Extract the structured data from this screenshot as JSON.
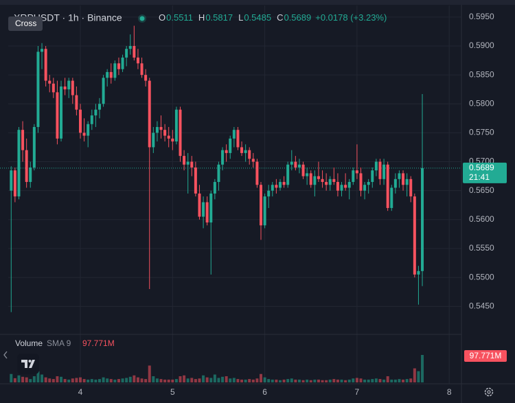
{
  "chart_data": {
    "type": "candlestick",
    "title": "XRPUSDT · 1h · Binance",
    "tooltip": "Cross",
    "ohlc_legend": [
      {
        "key": "O",
        "value": "0.5511"
      },
      {
        "key": "H",
        "value": "0.5817"
      },
      {
        "key": "L",
        "value": "0.5485"
      },
      {
        "key": "C",
        "value": "0.5689"
      }
    ],
    "change": "+0.0178 (+3.23%)",
    "up_color": "#22ab94",
    "down_color": "#f7525f",
    "grid": true,
    "xlim": [
      3.1288,
      8.1325
    ],
    "xticks": [
      4,
      5,
      6,
      7,
      8
    ],
    "ylim": [
      0.5404,
      0.597
    ],
    "yticks": [
      {
        "value": 0.545,
        "label": "0.5450"
      },
      {
        "value": 0.55,
        "label": "0.5500"
      },
      {
        "value": 0.555,
        "label": "0.5550"
      },
      {
        "value": 0.56,
        "label": "0.5600"
      },
      {
        "value": 0.565,
        "label": "0.5650"
      },
      {
        "value": 0.57,
        "label": "0.5700"
      },
      {
        "value": 0.575,
        "label": "0.5750"
      },
      {
        "value": 0.58,
        "label": "0.5800"
      },
      {
        "value": 0.585,
        "label": "0.5850"
      },
      {
        "value": 0.59,
        "label": "0.5900"
      },
      {
        "value": 0.595,
        "label": "0.5950"
      }
    ],
    "current_price": {
      "value": 0.5689,
      "countdown": "21:41"
    },
    "x": [
      3.25,
      3.2917,
      3.3333,
      3.375,
      3.4167,
      3.4583,
      3.5,
      3.5417,
      3.5833,
      3.625,
      3.6667,
      3.7083,
      3.75,
      3.7917,
      3.8333,
      3.875,
      3.9167,
      3.9583,
      4,
      4.0417,
      4.0833,
      4.125,
      4.1667,
      4.2083,
      4.25,
      4.2917,
      4.3333,
      4.375,
      4.4167,
      4.4583,
      4.5,
      4.5417,
      4.5833,
      4.625,
      4.6667,
      4.7083,
      4.75,
      4.7917,
      4.8333,
      4.875,
      4.9167,
      4.9583,
      5,
      5.0417,
      5.0833,
      5.125,
      5.1667,
      5.2083,
      5.25,
      5.2917,
      5.3333,
      5.375,
      5.4167,
      5.4583,
      5.5,
      5.5417,
      5.5833,
      5.625,
      5.6667,
      5.7083,
      5.75,
      5.7917,
      5.8333,
      5.875,
      5.9167,
      5.9583,
      6,
      6.0417,
      6.0833,
      6.125,
      6.1667,
      6.2083,
      6.25,
      6.2917,
      6.3333,
      6.375,
      6.4167,
      6.4583,
      6.5,
      6.5417,
      6.5833,
      6.625,
      6.6667,
      6.7083,
      6.75,
      6.7917,
      6.8333,
      6.875,
      6.9167,
      6.9583,
      7,
      7.0417,
      7.0833,
      7.125,
      7.1667,
      7.2083,
      7.25,
      7.2917,
      7.3333,
      7.375,
      7.4167,
      7.4583,
      7.5,
      7.5417,
      7.5833,
      7.625,
      7.6667,
      7.7083
    ],
    "candles": [
      [
        0.565,
        0.5692,
        0.544,
        0.5685
      ],
      [
        0.5685,
        0.569,
        0.563,
        0.564
      ],
      [
        0.564,
        0.576,
        0.5635,
        0.5755
      ],
      [
        0.5755,
        0.577,
        0.57,
        0.572
      ],
      [
        0.572,
        0.574,
        0.5655,
        0.5665
      ],
      [
        0.5665,
        0.57,
        0.5655,
        0.569
      ],
      [
        0.569,
        0.5765,
        0.5685,
        0.576
      ],
      [
        0.576,
        0.59,
        0.575,
        0.589
      ],
      [
        0.589,
        0.5905,
        0.586,
        0.5895
      ],
      [
        0.5895,
        0.59,
        0.583,
        0.584
      ],
      [
        0.584,
        0.585,
        0.582,
        0.5835
      ],
      [
        0.5835,
        0.5845,
        0.581,
        0.582
      ],
      [
        0.582,
        0.584,
        0.573,
        0.574
      ],
      [
        0.574,
        0.584,
        0.5735,
        0.583
      ],
      [
        0.583,
        0.5845,
        0.5815,
        0.5825
      ],
      [
        0.5825,
        0.5845,
        0.581,
        0.584
      ],
      [
        0.584,
        0.5845,
        0.58,
        0.5815
      ],
      [
        0.5815,
        0.583,
        0.578,
        0.579
      ],
      [
        0.579,
        0.58,
        0.574,
        0.575
      ],
      [
        0.575,
        0.5775,
        0.5735,
        0.5745
      ],
      [
        0.5745,
        0.577,
        0.5725,
        0.5765
      ],
      [
        0.5765,
        0.579,
        0.5755,
        0.578
      ],
      [
        0.578,
        0.58,
        0.576,
        0.579
      ],
      [
        0.579,
        0.581,
        0.5775,
        0.58
      ],
      [
        0.58,
        0.585,
        0.5795,
        0.5845
      ],
      [
        0.5845,
        0.586,
        0.583,
        0.5855
      ],
      [
        0.5855,
        0.587,
        0.5835,
        0.5845
      ],
      [
        0.5845,
        0.5875,
        0.584,
        0.587
      ],
      [
        0.587,
        0.588,
        0.585,
        0.586
      ],
      [
        0.586,
        0.5885,
        0.5855,
        0.588
      ],
      [
        0.588,
        0.59,
        0.5865,
        0.5895
      ],
      [
        0.5895,
        0.592,
        0.5885,
        0.59
      ],
      [
        0.59,
        0.5935,
        0.5875,
        0.588
      ],
      [
        0.588,
        0.5895,
        0.586,
        0.587
      ],
      [
        0.587,
        0.588,
        0.5845,
        0.585
      ],
      [
        0.585,
        0.586,
        0.583,
        0.584
      ],
      [
        0.584,
        0.5845,
        0.548,
        0.5725
      ],
      [
        0.5725,
        0.576,
        0.5715,
        0.575
      ],
      [
        0.575,
        0.577,
        0.5735,
        0.576
      ],
      [
        0.576,
        0.578,
        0.574,
        0.5755
      ],
      [
        0.5755,
        0.5765,
        0.5735,
        0.5745
      ],
      [
        0.5745,
        0.576,
        0.5725,
        0.574
      ],
      [
        0.574,
        0.5755,
        0.572,
        0.5735
      ],
      [
        0.5735,
        0.5795,
        0.573,
        0.579
      ],
      [
        0.579,
        0.5795,
        0.57,
        0.571
      ],
      [
        0.571,
        0.572,
        0.5685,
        0.5695
      ],
      [
        0.5695,
        0.5715,
        0.5645,
        0.57
      ],
      [
        0.57,
        0.571,
        0.5675,
        0.569
      ],
      [
        0.569,
        0.57,
        0.564,
        0.5645
      ],
      [
        0.5645,
        0.566,
        0.56,
        0.5605
      ],
      [
        0.5605,
        0.564,
        0.5585,
        0.563
      ],
      [
        0.563,
        0.564,
        0.559,
        0.5595
      ],
      [
        0.5595,
        0.565,
        0.5505,
        0.5645
      ],
      [
        0.5645,
        0.567,
        0.5635,
        0.5665
      ],
      [
        0.5665,
        0.57,
        0.565,
        0.5695
      ],
      [
        0.5695,
        0.5725,
        0.5685,
        0.572
      ],
      [
        0.572,
        0.573,
        0.57,
        0.5715
      ],
      [
        0.5715,
        0.5745,
        0.5705,
        0.574
      ],
      [
        0.574,
        0.576,
        0.5725,
        0.5755
      ],
      [
        0.5755,
        0.576,
        0.572,
        0.5725
      ],
      [
        0.5725,
        0.5735,
        0.571,
        0.5715
      ],
      [
        0.5715,
        0.573,
        0.57,
        0.572
      ],
      [
        0.572,
        0.5725,
        0.5695,
        0.5705
      ],
      [
        0.5705,
        0.5715,
        0.569,
        0.57
      ],
      [
        0.57,
        0.5705,
        0.5655,
        0.566
      ],
      [
        0.566,
        0.5665,
        0.5565,
        0.559
      ],
      [
        0.559,
        0.5645,
        0.5585,
        0.564
      ],
      [
        0.564,
        0.566,
        0.562,
        0.565
      ],
      [
        0.565,
        0.5665,
        0.564,
        0.566
      ],
      [
        0.566,
        0.567,
        0.5645,
        0.5655
      ],
      [
        0.5655,
        0.567,
        0.565,
        0.5665
      ],
      [
        0.5665,
        0.5675,
        0.5655,
        0.566
      ],
      [
        0.566,
        0.57,
        0.5655,
        0.5695
      ],
      [
        0.5695,
        0.572,
        0.5685,
        0.57
      ],
      [
        0.57,
        0.571,
        0.5685,
        0.569
      ],
      [
        0.569,
        0.5705,
        0.568,
        0.5695
      ],
      [
        0.5695,
        0.57,
        0.567,
        0.5675
      ],
      [
        0.5675,
        0.569,
        0.566,
        0.568
      ],
      [
        0.568,
        0.5685,
        0.5655,
        0.566
      ],
      [
        0.566,
        0.5685,
        0.564,
        0.5675
      ],
      [
        0.5675,
        0.57,
        0.5665,
        0.567
      ],
      [
        0.567,
        0.5685,
        0.5655,
        0.5665
      ],
      [
        0.5665,
        0.568,
        0.565,
        0.566
      ],
      [
        0.566,
        0.5675,
        0.565,
        0.567
      ],
      [
        0.567,
        0.569,
        0.566,
        0.5665
      ],
      [
        0.5665,
        0.568,
        0.564,
        0.565
      ],
      [
        0.565,
        0.5665,
        0.564,
        0.566
      ],
      [
        0.566,
        0.568,
        0.565,
        0.5655
      ],
      [
        0.5655,
        0.567,
        0.5635,
        0.5665
      ],
      [
        0.5665,
        0.569,
        0.566,
        0.5685
      ],
      [
        0.5685,
        0.573,
        0.567,
        0.568
      ],
      [
        0.568,
        0.569,
        0.564,
        0.565
      ],
      [
        0.565,
        0.5665,
        0.5635,
        0.566
      ],
      [
        0.566,
        0.567,
        0.5645,
        0.5665
      ],
      [
        0.5665,
        0.569,
        0.5655,
        0.5685
      ],
      [
        0.5685,
        0.5705,
        0.5675,
        0.57
      ],
      [
        0.57,
        0.5705,
        0.566,
        0.567
      ],
      [
        0.567,
        0.5705,
        0.566,
        0.5695
      ],
      [
        0.5695,
        0.57,
        0.5615,
        0.562
      ],
      [
        0.562,
        0.566,
        0.5615,
        0.5655
      ],
      [
        0.5655,
        0.568,
        0.5645,
        0.567
      ],
      [
        0.567,
        0.5685,
        0.5655,
        0.568
      ],
      [
        0.568,
        0.5685,
        0.565,
        0.566
      ],
      [
        0.566,
        0.568,
        0.564,
        0.567
      ],
      [
        0.567,
        0.5675,
        0.563,
        0.564
      ],
      [
        0.564,
        0.5645,
        0.55,
        0.5505
      ],
      [
        0.5505,
        0.552,
        0.5453,
        0.5511
      ],
      [
        0.5511,
        0.5817,
        0.5485,
        0.5689
      ]
    ],
    "volume": {
      "name": "Volume",
      "indicator": "SMA 9",
      "value_label": "97.771M",
      "values": [
        30,
        15,
        25,
        20,
        18,
        12,
        22,
        40,
        28,
        18,
        14,
        12,
        22,
        20,
        12,
        10,
        14,
        16,
        18,
        12,
        10,
        12,
        10,
        12,
        18,
        14,
        12,
        10,
        12,
        14,
        16,
        20,
        25,
        18,
        14,
        12,
        60,
        22,
        14,
        12,
        10,
        10,
        10,
        12,
        22,
        25,
        14,
        16,
        12,
        14,
        25,
        18,
        16,
        28,
        16,
        20,
        22,
        14,
        16,
        12,
        10,
        10,
        12,
        10,
        14,
        30,
        18,
        12,
        10,
        10,
        8,
        10,
        12,
        14,
        10,
        10,
        8,
        10,
        8,
        10,
        10,
        8,
        8,
        10,
        12,
        10,
        10,
        8,
        10,
        14,
        16,
        14,
        10,
        10,
        12,
        14,
        12,
        10,
        22,
        10,
        10,
        12,
        10,
        12,
        14,
        50,
        40,
        97.771
      ]
    }
  }
}
